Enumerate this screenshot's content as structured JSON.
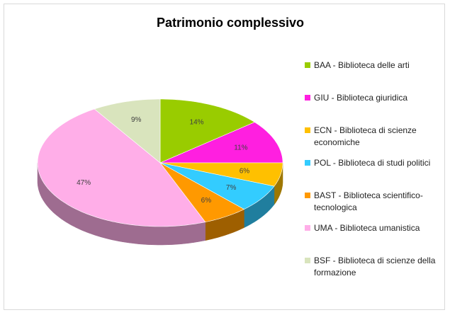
{
  "chart_data": {
    "type": "pie",
    "title": "Patrimonio complessivo",
    "categories": [
      "BAA - Biblioteca delle arti",
      "GIU - Biblioteca giuridica",
      "ECN - Biblioteca di scienze economiche",
      "POL - Biblioteca di studi politici",
      "BAST - Biblioteca scientifico-tecnologica",
      "UMA - Biblioteca umanistica",
      "BSF - Biblioteca di scienze della formazione"
    ],
    "values": [
      14,
      11,
      6,
      7,
      6,
      47,
      9
    ],
    "value_labels": [
      "14%",
      "11%",
      "6%",
      "7%",
      "6%",
      "47%",
      "9%"
    ],
    "colors": [
      "#99cc00",
      "#ff1fe0",
      "#ffc000",
      "#33ccff",
      "#ff9900",
      "#ffaee8",
      "#d9e4bd"
    ],
    "legend": "right"
  }
}
